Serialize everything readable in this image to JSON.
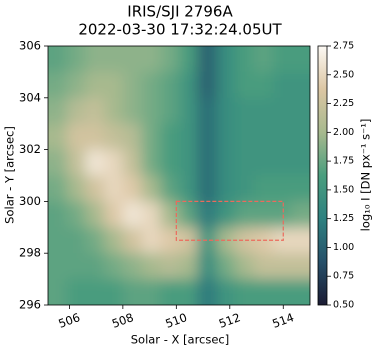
{
  "chart_data": {
    "type": "heatmap",
    "title": "IRIS/SJI 2796A",
    "subtitle": "2022-03-30 17:32:24.05UT",
    "x_label": "Solar - X [arcsec]",
    "y_label": "Solar - Y [arcsec]",
    "colorbar_label": "log₁₀ I [DN px⁻¹ s⁻¹]",
    "xlim": [
      505.2,
      515.0
    ],
    "ylim": [
      296,
      306
    ],
    "xticks": [
      506,
      508,
      510,
      512,
      514
    ],
    "yticks": [
      296,
      298,
      300,
      302,
      304,
      306
    ],
    "xbins": [
      505.2,
      505.9,
      506.6,
      507.3,
      508.0,
      508.7,
      509.4,
      510.1,
      510.8,
      511.5,
      512.2,
      512.9,
      513.6,
      514.3,
      515.0
    ],
    "ybins": [
      306,
      305,
      304,
      303,
      302,
      301,
      300,
      299,
      298,
      297,
      296
    ],
    "values": [
      [
        1.7,
        1.8,
        1.9,
        1.9,
        1.9,
        1.9,
        1.8,
        1.6,
        1.0,
        1.4,
        1.6,
        1.7,
        1.6,
        1.6
      ],
      [
        1.8,
        1.9,
        2.0,
        2.0,
        1.9,
        1.8,
        1.7,
        1.5,
        1.0,
        1.4,
        1.6,
        1.6,
        1.5,
        1.5
      ],
      [
        1.9,
        2.1,
        2.2,
        2.0,
        1.9,
        1.8,
        1.7,
        1.5,
        1.1,
        1.4,
        1.5,
        1.5,
        1.5,
        1.5
      ],
      [
        2.0,
        2.3,
        2.3,
        2.2,
        2.1,
        1.8,
        1.6,
        1.5,
        1.1,
        1.4,
        1.5,
        1.5,
        1.5,
        1.5
      ],
      [
        1.9,
        2.2,
        2.6,
        2.5,
        2.2,
        1.8,
        1.6,
        1.5,
        1.1,
        1.4,
        1.5,
        1.5,
        1.5,
        1.5
      ],
      [
        1.8,
        2.0,
        2.3,
        2.5,
        2.4,
        2.0,
        1.7,
        1.5,
        1.1,
        1.4,
        1.5,
        1.6,
        1.6,
        1.6
      ],
      [
        1.7,
        1.8,
        2.0,
        2.4,
        2.6,
        2.5,
        2.0,
        1.7,
        1.2,
        1.5,
        1.7,
        1.7,
        1.7,
        1.8
      ],
      [
        1.7,
        1.7,
        1.8,
        2.0,
        2.3,
        2.5,
        2.4,
        2.3,
        1.5,
        2.0,
        2.3,
        2.4,
        2.5,
        2.5
      ],
      [
        1.7,
        1.7,
        1.7,
        1.8,
        1.9,
        2.0,
        2.1,
        2.0,
        1.4,
        1.8,
        2.0,
        2.2,
        2.2,
        2.2
      ],
      [
        1.7,
        1.6,
        1.6,
        1.6,
        1.7,
        1.7,
        1.6,
        1.6,
        1.2,
        1.5,
        1.6,
        1.6,
        1.6,
        1.6
      ]
    ],
    "clim": [
      0.5,
      2.75
    ],
    "colormap": [
      "#1b1b33",
      "#26506a",
      "#2e8180",
      "#4a9e7e",
      "#a7b98e",
      "#dcc6a3",
      "#fcf9f4"
    ],
    "cticks": [
      {
        "value": 0.5,
        "label": "0.50"
      },
      {
        "value": 0.75,
        "label": "0.75"
      },
      {
        "value": 1.0,
        "label": "1.00"
      },
      {
        "value": 1.25,
        "label": "1.25"
      },
      {
        "value": 1.5,
        "label": "1.50"
      },
      {
        "value": 1.75,
        "label": "1.75"
      },
      {
        "value": 2.0,
        "label": "2.00"
      },
      {
        "value": 2.25,
        "label": "2.25"
      },
      {
        "value": 2.5,
        "label": "2.50"
      },
      {
        "value": 2.75,
        "label": "2.75"
      }
    ],
    "box": {
      "x": [
        510,
        514
      ],
      "y": [
        298.5,
        300
      ],
      "color": "#ec6a5c"
    }
  }
}
